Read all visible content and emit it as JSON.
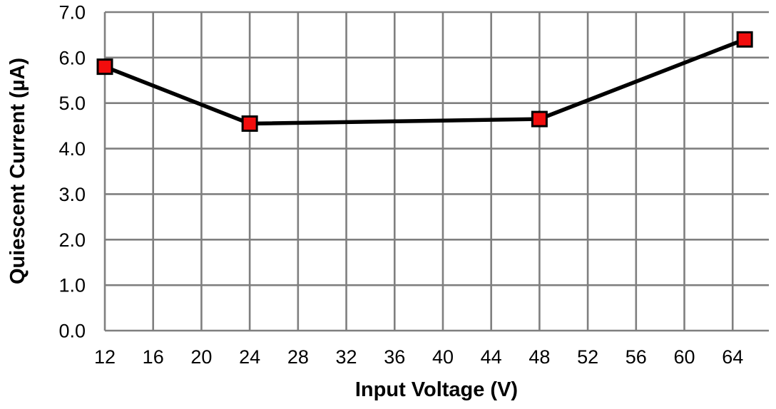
{
  "chart_data": {
    "type": "line",
    "title": "",
    "xlabel": "Input Voltage (V)",
    "ylabel": "Quiescent Current (µA)",
    "series": [
      {
        "name": "Quiescent Current",
        "x": [
          12,
          24,
          48,
          65
        ],
        "y": [
          5.8,
          4.55,
          4.65,
          6.4
        ]
      }
    ],
    "x_ticks": [
      12,
      16,
      20,
      24,
      28,
      32,
      36,
      40,
      44,
      48,
      52,
      56,
      60,
      64
    ],
    "y_ticks": [
      0.0,
      1.0,
      2.0,
      3.0,
      4.0,
      5.0,
      6.0,
      7.0
    ],
    "y_tick_decimals": 1,
    "xlim": [
      12,
      67
    ],
    "ylim": [
      0,
      7
    ],
    "grid": true,
    "legend": "none",
    "marker": "square",
    "colors": {
      "line": "#000000",
      "marker_fill": "#f20d0d",
      "marker_edge": "#000000",
      "grid": "#7f7f7f",
      "text": "#000000",
      "background": "#ffffff"
    }
  }
}
